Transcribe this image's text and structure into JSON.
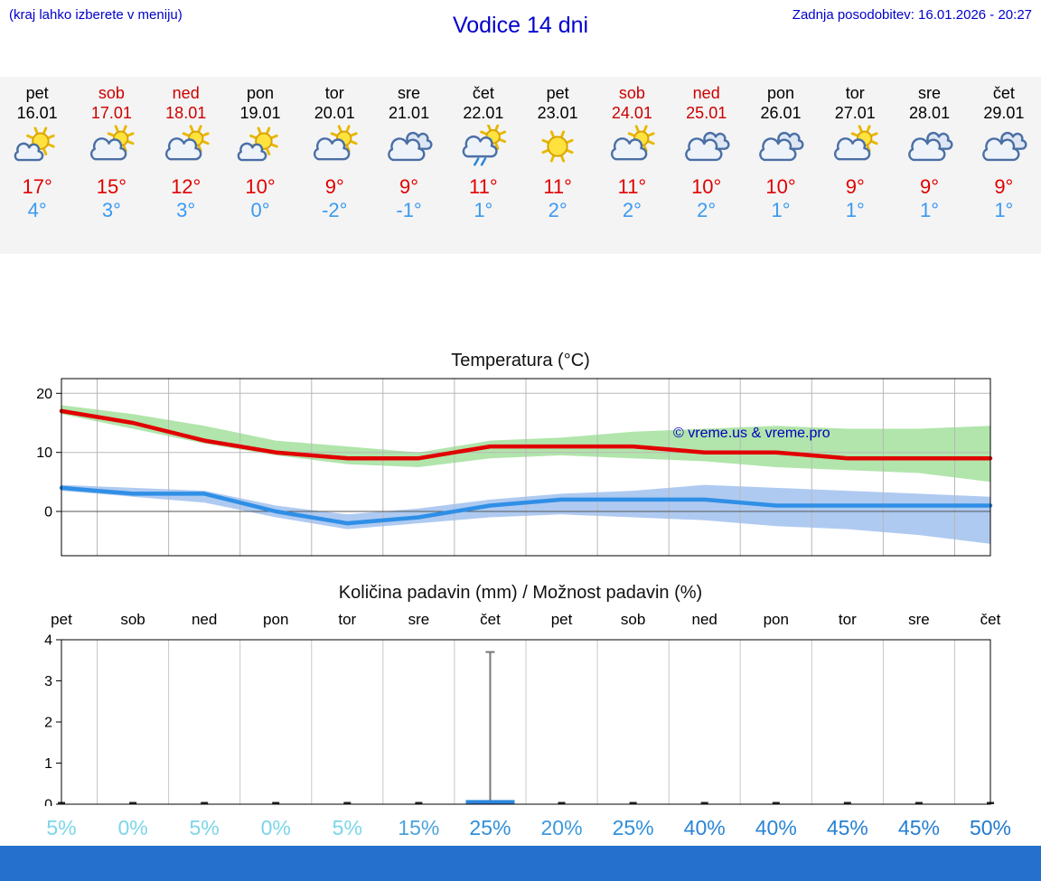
{
  "header": {
    "menu_hint": "(kraj lahko izberete v meniju)",
    "title": "Vodice 14 dni",
    "last_update": "Zadnja posodobitev: 16.01.2026 - 20:27"
  },
  "forecast": {
    "days": [
      {
        "name": "pet",
        "date": "16.01",
        "weekend": false,
        "icon": "mostly-sunny",
        "tmax": "17°",
        "tmin": "4°"
      },
      {
        "name": "sob",
        "date": "17.01",
        "weekend": true,
        "icon": "partly-cloudy",
        "tmax": "15°",
        "tmin": "3°"
      },
      {
        "name": "ned",
        "date": "18.01",
        "weekend": true,
        "icon": "partly-cloudy",
        "tmax": "12°",
        "tmin": "3°"
      },
      {
        "name": "pon",
        "date": "19.01",
        "weekend": false,
        "icon": "mostly-sunny",
        "tmax": "10°",
        "tmin": "0°"
      },
      {
        "name": "tor",
        "date": "20.01",
        "weekend": false,
        "icon": "partly-cloudy",
        "tmax": "9°",
        "tmin": "-2°"
      },
      {
        "name": "sre",
        "date": "21.01",
        "weekend": false,
        "icon": "cloudy",
        "tmax": "9°",
        "tmin": "-1°"
      },
      {
        "name": "čet",
        "date": "22.01",
        "weekend": false,
        "icon": "light-rain",
        "tmax": "11°",
        "tmin": "1°"
      },
      {
        "name": "pet",
        "date": "23.01",
        "weekend": false,
        "icon": "sunny",
        "tmax": "11°",
        "tmin": "2°"
      },
      {
        "name": "sob",
        "date": "24.01",
        "weekend": true,
        "icon": "partly-cloudy",
        "tmax": "11°",
        "tmin": "2°"
      },
      {
        "name": "ned",
        "date": "25.01",
        "weekend": true,
        "icon": "cloudy",
        "tmax": "10°",
        "tmin": "2°"
      },
      {
        "name": "pon",
        "date": "26.01",
        "weekend": false,
        "icon": "cloudy",
        "tmax": "10°",
        "tmin": "1°"
      },
      {
        "name": "tor",
        "date": "27.01",
        "weekend": false,
        "icon": "partly-cloudy",
        "tmax": "9°",
        "tmin": "1°"
      },
      {
        "name": "sre",
        "date": "28.01",
        "weekend": false,
        "icon": "cloudy",
        "tmax": "9°",
        "tmin": "1°"
      },
      {
        "name": "čet",
        "date": "29.01",
        "weekend": false,
        "icon": "cloudy",
        "tmax": "9°",
        "tmin": "1°"
      }
    ]
  },
  "chart_data": [
    {
      "type": "line",
      "title": "Temperatura (°C)",
      "categories": [
        "16.01",
        "17.01",
        "18.01",
        "19.01",
        "20.01",
        "21.01",
        "22.01",
        "23.01",
        "24.01",
        "25.01",
        "26.01",
        "27.01",
        "28.01",
        "29.01"
      ],
      "ylim": [
        -7.5,
        22.5
      ],
      "yticks": [
        0,
        10,
        20
      ],
      "grid": true,
      "legend_position": "none",
      "watermark": "© vreme.us & vreme.pro",
      "series": [
        {
          "name": "max-temperature",
          "color": "#e10000",
          "values": [
            17,
            15,
            12,
            10,
            9,
            9,
            11,
            11,
            11,
            10,
            10,
            9,
            9,
            9
          ]
        },
        {
          "name": "min-temperature",
          "color": "#2f8fe6",
          "values": [
            4,
            3,
            3,
            0,
            -2,
            -1,
            1,
            2,
            2,
            2,
            1,
            1,
            1,
            1
          ]
        }
      ],
      "bands": [
        {
          "name": "max-temperature-range",
          "color": "#a8e2a2",
          "upper": [
            18,
            16.5,
            14.5,
            12,
            11,
            10,
            12,
            12.5,
            13.5,
            14,
            14.5,
            14,
            14,
            14.5
          ],
          "lower": [
            16.5,
            14,
            11.5,
            9.5,
            8,
            7.5,
            9,
            9.5,
            9,
            8.5,
            7.5,
            7,
            6.5,
            5
          ]
        },
        {
          "name": "min-temperature-range",
          "color": "#a6c4f0",
          "upper": [
            4.5,
            4,
            3.5,
            1,
            -0.5,
            0.5,
            2,
            3,
            3.5,
            4.5,
            4,
            3.5,
            3,
            2.5
          ],
          "lower": [
            3.5,
            2.5,
            1.5,
            -1,
            -3,
            -2,
            -1,
            -0.5,
            -1,
            -1.5,
            -2.5,
            -3,
            -4,
            -5.5
          ]
        }
      ]
    },
    {
      "type": "bar",
      "title": "Količina padavin (mm) / Možnost padavin (%)",
      "categories": [
        "pet",
        "sob",
        "ned",
        "pon",
        "tor",
        "sre",
        "čet",
        "pet",
        "sob",
        "ned",
        "pon",
        "tor",
        "sre",
        "čet"
      ],
      "ylim": [
        0,
        4
      ],
      "yticks": [
        0,
        1,
        2,
        3,
        4
      ],
      "precipitation_mm": [
        0,
        0,
        0,
        0,
        0,
        0,
        0.1,
        0,
        0,
        0,
        0,
        0,
        0,
        0
      ],
      "precipitation_max_mm": [
        0,
        0,
        0,
        0,
        0,
        0,
        3.7,
        0,
        0,
        0,
        0,
        0,
        0,
        0
      ],
      "probabilities": [
        {
          "label": "5%",
          "color": "#7bd5e9"
        },
        {
          "label": "0%",
          "color": "#7bd5e9"
        },
        {
          "label": "5%",
          "color": "#7bd5e9"
        },
        {
          "label": "0%",
          "color": "#7bd5e9"
        },
        {
          "label": "5%",
          "color": "#7bd5e9"
        },
        {
          "label": "15%",
          "color": "#4aa3da"
        },
        {
          "label": "25%",
          "color": "#2f8fd9"
        },
        {
          "label": "20%",
          "color": "#3c99dc"
        },
        {
          "label": "25%",
          "color": "#2f8fd9"
        },
        {
          "label": "40%",
          "color": "#2a84d5"
        },
        {
          "label": "40%",
          "color": "#2a84d5"
        },
        {
          "label": "45%",
          "color": "#2680d2"
        },
        {
          "label": "45%",
          "color": "#2680d2"
        },
        {
          "label": "50%",
          "color": "#217ace"
        }
      ]
    }
  ],
  "colors": {
    "accent_blue": "#0000cc",
    "weekend_red": "#cc0000",
    "tmax_red": "#e10000",
    "tmin_blue": "#3a9af0",
    "watermark_blue": "#0000bb",
    "footer_blue": "#2470cc",
    "strip_bg": "#f4f4f4"
  }
}
